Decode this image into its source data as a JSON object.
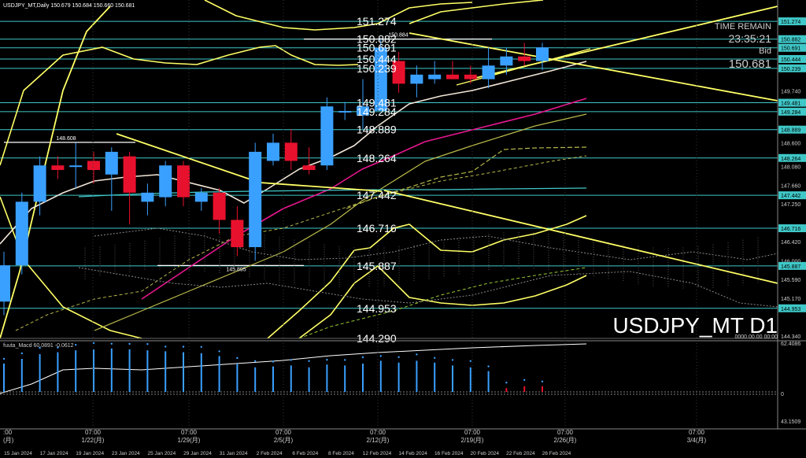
{
  "header": {
    "title": "USDJPY_MT,Daily",
    "ohlc": "150.679 150.684 150.660 150.681"
  },
  "panel": {
    "time_remain_label": "TIME REMAIN",
    "time_remain_value": "23:35:21",
    "bid_label": "Bid",
    "bid_value": "150.681"
  },
  "symbol_watermark": "USDJPY_MT D1",
  "macd": {
    "label": "fuuta_Macd 60.0891 -0.0612",
    "axis_labels": [
      "62.4086",
      "0",
      "43.1509"
    ]
  },
  "bottom_right_value": "0000.00.00 00:00",
  "colors": {
    "background": "#000000",
    "bull": "#3aa0ff",
    "bear": "#e8112d",
    "level": "#40c8c8",
    "trend": "#ffff66",
    "ma_white": "#f2e6d8",
    "ma_magenta": "#e8178f",
    "ma_olive": "#b8b84a"
  },
  "chart_data": {
    "type": "candlestick",
    "dates": [
      "15 Jan 2024",
      "16 Jan 2024",
      "17 Jan 2024",
      "18 Jan 2024",
      "19 Jan 2024",
      "22 Jan 2024",
      "23 Jan 2024",
      "24 Jan 2024",
      "25 Jan 2024",
      "26 Jan 2024",
      "29 Jan 2024",
      "30 Jan 2024",
      "31 Jan 2024",
      "1 Feb 2024",
      "2 Feb 2024",
      "5 Feb 2024",
      "6 Feb 2024",
      "7 Feb 2024",
      "8 Feb 2024",
      "9 Feb 2024",
      "12 Feb 2024",
      "13 Feb 2024",
      "14 Feb 2024",
      "15 Feb 2024",
      "16 Feb 2024",
      "19 Feb 2024",
      "20 Feb 2024",
      "21 Feb 2024",
      "22 Feb 2024",
      "23 Feb 2024",
      "26 Feb 2024"
    ],
    "candles": [
      {
        "o": 145.1,
        "h": 146.2,
        "l": 144.8,
        "c": 145.9
      },
      {
        "o": 145.9,
        "h": 147.5,
        "l": 145.7,
        "c": 147.3
      },
      {
        "o": 147.3,
        "h": 148.3,
        "l": 147.0,
        "c": 148.1
      },
      {
        "o": 148.1,
        "h": 148.3,
        "l": 147.8,
        "c": 148.0
      },
      {
        "o": 148.1,
        "h": 148.6,
        "l": 147.6,
        "c": 148.1
      },
      {
        "o": 148.2,
        "h": 148.4,
        "l": 147.7,
        "c": 148.0
      },
      {
        "o": 147.9,
        "h": 148.5,
        "l": 147.1,
        "c": 148.4
      },
      {
        "o": 148.3,
        "h": 148.4,
        "l": 146.8,
        "c": 147.5
      },
      {
        "o": 147.3,
        "h": 147.7,
        "l": 147.0,
        "c": 147.5
      },
      {
        "o": 147.4,
        "h": 148.2,
        "l": 147.2,
        "c": 148.1
      },
      {
        "o": 148.1,
        "h": 148.2,
        "l": 147.2,
        "c": 147.4
      },
      {
        "o": 147.3,
        "h": 147.6,
        "l": 147.1,
        "c": 147.5
      },
      {
        "o": 147.5,
        "h": 147.6,
        "l": 146.6,
        "c": 146.9
      },
      {
        "o": 146.9,
        "h": 147.2,
        "l": 146.1,
        "c": 146.3
      },
      {
        "o": 146.3,
        "h": 148.6,
        "l": 146.0,
        "c": 148.4
      },
      {
        "o": 148.2,
        "h": 148.8,
        "l": 148.1,
        "c": 148.6
      },
      {
        "o": 148.6,
        "h": 148.9,
        "l": 148.0,
        "c": 148.2
      },
      {
        "o": 148.1,
        "h": 148.5,
        "l": 147.9,
        "c": 148.0
      },
      {
        "o": 148.1,
        "h": 149.6,
        "l": 148.0,
        "c": 149.4
      },
      {
        "o": 149.3,
        "h": 149.5,
        "l": 149.1,
        "c": 149.3
      },
      {
        "o": 149.2,
        "h": 150.0,
        "l": 148.9,
        "c": 149.4
      },
      {
        "o": 149.3,
        "h": 150.9,
        "l": 149.3,
        "c": 150.7
      },
      {
        "o": 150.4,
        "h": 150.6,
        "l": 149.7,
        "c": 149.9
      },
      {
        "o": 149.9,
        "h": 150.3,
        "l": 149.6,
        "c": 150.1
      },
      {
        "o": 150.0,
        "h": 150.4,
        "l": 149.9,
        "c": 150.1
      },
      {
        "o": 150.1,
        "h": 150.4,
        "l": 150.0,
        "c": 150.0
      },
      {
        "o": 150.1,
        "h": 150.3,
        "l": 149.9,
        "c": 150.0
      },
      {
        "o": 150.0,
        "h": 150.7,
        "l": 149.8,
        "c": 150.3
      },
      {
        "o": 150.3,
        "h": 150.7,
        "l": 150.1,
        "c": 150.5
      },
      {
        "o": 150.5,
        "h": 150.8,
        "l": 150.3,
        "c": 150.4
      },
      {
        "o": 150.4,
        "h": 150.8,
        "l": 150.2,
        "c": 150.7
      }
    ],
    "horizontal_levels": [
      151.274,
      150.882,
      150.691,
      150.444,
      150.239,
      149.481,
      149.284,
      148.889,
      148.264,
      147.442,
      146.716,
      145.887,
      144.953,
      144.29
    ],
    "marked_levels": [
      {
        "label": "148.608",
        "value": 148.608
      },
      {
        "label": "145.895",
        "value": 145.895
      },
      {
        "label": "150.884",
        "value": 150.884
      }
    ],
    "y_ticks": [
      "151.274",
      "150.882",
      "150.691",
      "150.444",
      "150.239",
      "149.740",
      "149.481",
      "149.284",
      "148.889",
      "148.600",
      "148.264",
      "148.080",
      "147.660",
      "147.442",
      "147.250",
      "146.716",
      "146.420",
      "146.000",
      "145.887",
      "145.590",
      "145.170",
      "144.953",
      "144.340"
    ],
    "ylim": [
      144.29,
      151.64
    ],
    "x_tick_labels": [
      "15 Jan 2024",
      "17 Jan 2024",
      "19 Jan 2024",
      "23 Jan 2024",
      "25 Jan 2024",
      "29 Jan 2024",
      "31 Jan 2024",
      "2 Feb 2024",
      "6 Feb 2024",
      "8 Feb 2024",
      "12 Feb 2024",
      "14 Feb 2024",
      "16 Feb 2024",
      "20 Feb 2024",
      "22 Feb 2024",
      "26 Feb 2024"
    ],
    "x_time_labels": [
      "1/22(月)",
      "1/29(月)",
      "2/5(月)",
      "2/12(月)",
      "2/19(月)",
      "2/26(月)",
      "3/4(月)"
    ],
    "x_time_top": "07:00",
    "first_time_label": ":00",
    "first_time_sub": "(月)",
    "macd_histogram": [
      30,
      35,
      40,
      42,
      44,
      45,
      46,
      45,
      44,
      43,
      42,
      41,
      38,
      30,
      26,
      27,
      28,
      26,
      29,
      28,
      30,
      33,
      31,
      33,
      31,
      28,
      26,
      22,
      4,
      6,
      6
    ],
    "macd_ylim": [
      43.1509,
      62.4086
    ]
  }
}
